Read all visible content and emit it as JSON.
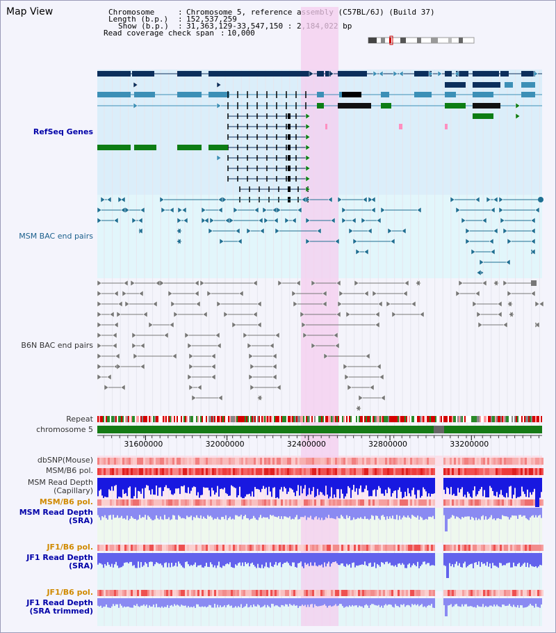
{
  "title": "Map View",
  "header": {
    "chromosome_label": "Chromosome",
    "chromosome_value": "Chromosome 5, reference assembly (C57BL/6J) (Build 37)",
    "length_label": "Length (b.p.)",
    "length_value": "152,537,259",
    "show_label": "Show (b.p.)",
    "show_value": "31,363,129-33,547,150 : 2,184,022 bp",
    "coverage_label": "Read coverage check span",
    "coverage_value": "10,000"
  },
  "tracks": {
    "refseq": "RefSeq Genes",
    "msm_bac": "MSM BAC end pairs",
    "b6n_bac": "B6N BAC end pairs",
    "repeat": "Repeat",
    "chromosome": "chromosome 5",
    "dbsnp": "dbSNP(Mouse)",
    "msm_pol1": "MSM/B6 pol.",
    "msm_depth_cap_1": "MSM Read Depth",
    "msm_depth_cap_2": "(Capillary)",
    "msm_pol2": "MSM/B6 pol.",
    "msm_depth_sra_1": "MSM Read Depth",
    "msm_depth_sra_2": "(SRA)",
    "jf1_pol1": "JF1/B6 pol.",
    "jf1_depth_1": "JF1 Read Depth",
    "jf1_depth_2": "(SRA)",
    "jf1_pol2": "JF1/B6 pol.",
    "jf1_trim_1": "JF1 Read Depth",
    "jf1_trim_2": "(SRA trimmed)"
  },
  "axis": {
    "ticks": [
      "31600000",
      "32000000",
      "32400000",
      "32800000",
      "33200000"
    ],
    "tick_values": [
      31600000,
      32000000,
      32400000,
      32800000,
      33200000
    ],
    "start": 31363129,
    "end": 33547150
  },
  "highlight_color": "#f6cdef",
  "colors": {
    "refseq_bg": "#dbeefa",
    "msm_bg": "#e2f6fb",
    "b6n_bg": "#f4f4fb",
    "navy": "#0c2f5c",
    "steel": "#3c8fb6",
    "green": "#0d7d14",
    "depth_blue": "#1818e0",
    "depth_light": "#7a7af0"
  }
}
